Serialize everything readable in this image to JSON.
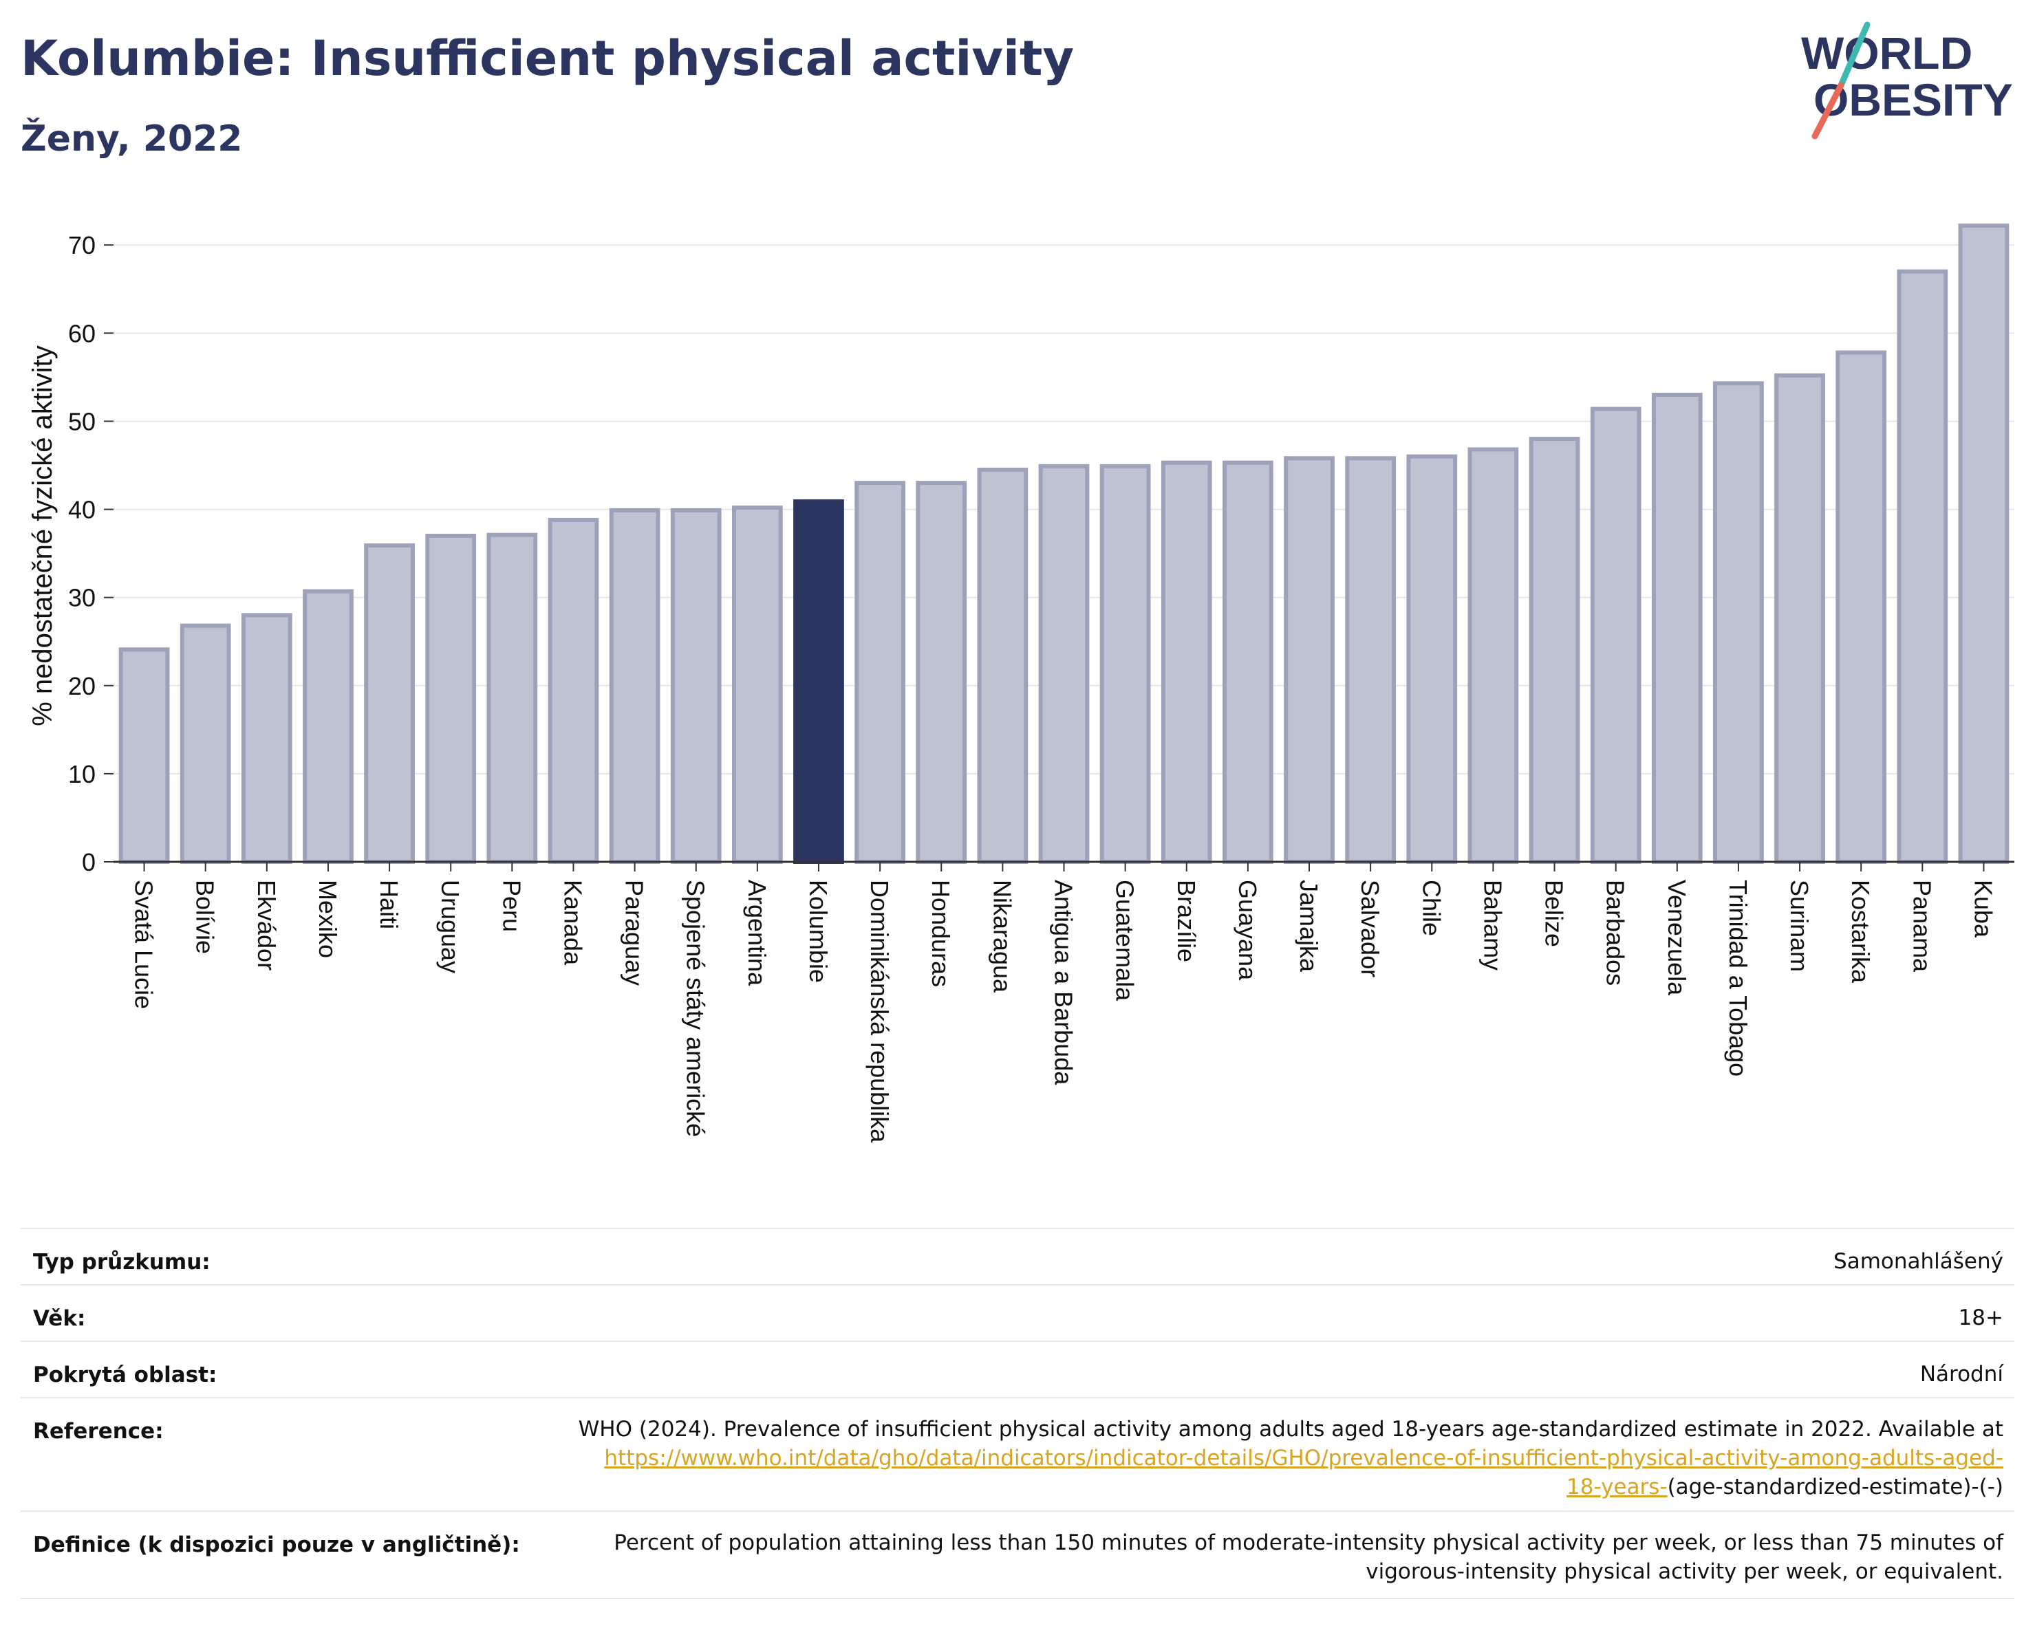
{
  "header": {
    "title": "Kolumbie: Insufficient physical activity",
    "subtitle": "Ženy, 2022",
    "logo_line1": "WORLD",
    "logo_line2": "OBESITY"
  },
  "colors": {
    "bar_default": "#bfc2d0",
    "bar_default_edge": "#9da2ba",
    "bar_highlight": "#2b3560",
    "title": "#2b3560",
    "link": "#d9a520"
  },
  "chart_data": {
    "type": "bar",
    "ylabel": "% nedostatečné fyzické aktivity",
    "ylim": [
      0,
      74
    ],
    "yticks": [
      0,
      10,
      20,
      30,
      40,
      50,
      60,
      70
    ],
    "grid": true,
    "highlight": "Kolumbie",
    "categories": [
      "Svatá Lucie",
      "Bolívie",
      "Ekvádor",
      "Mexiko",
      "Haiti",
      "Uruguay",
      "Peru",
      "Kanada",
      "Paraguay",
      "Spojené státy americké",
      "Argentina",
      "Kolumbie",
      "Dominikánská republika",
      "Honduras",
      "Nikaragua",
      "Antigua a Barbuda",
      "Guatemala",
      "Brazílie",
      "Guayana",
      "Jamajka",
      "Salvador",
      "Chile",
      "Bahamy",
      "Belize",
      "Barbados",
      "Venezuela",
      "Trinidad a Tobago",
      "Surinam",
      "Kostarika",
      "Panama",
      "Kuba"
    ],
    "values": [
      24.1,
      26.8,
      28.0,
      30.7,
      35.9,
      37.0,
      37.1,
      38.8,
      39.9,
      39.9,
      40.2,
      40.9,
      43.0,
      43.0,
      44.5,
      44.9,
      44.9,
      45.3,
      45.3,
      45.8,
      45.8,
      46.0,
      46.8,
      48.0,
      51.4,
      53.0,
      54.3,
      55.2,
      57.8,
      67.0,
      72.2
    ]
  },
  "meta": {
    "survey_type_label": "Typ průzkumu:",
    "survey_type_value": "Samonahlášený",
    "age_label": "Věk:",
    "age_value": "18+",
    "coverage_label": "Pokrytá oblast:",
    "coverage_value": "Národní",
    "reference_label": "Reference:",
    "reference_text": "WHO (2024). Prevalence of insufficient physical activity among adults aged 18-years age-standardized estimate in 2022. Available at",
    "reference_link_1": "https://www.who.int/data/gho/data/indicators/indicator-details/GHO/prevalence-of-insufficient-physical-activity-among-adults-aged-",
    "reference_link_2": "18-years-",
    "reference_tail": "(age-standardized-estimate)-(-)",
    "definition_label": "Definice (k dispozici pouze v angličtině):",
    "definition_line1": "Percent of population attaining less than 150 minutes of moderate-intensity physical activity per week, or less than 75 minutes of",
    "definition_line2": "vigorous-intensity physical activity per week, or equivalent."
  }
}
